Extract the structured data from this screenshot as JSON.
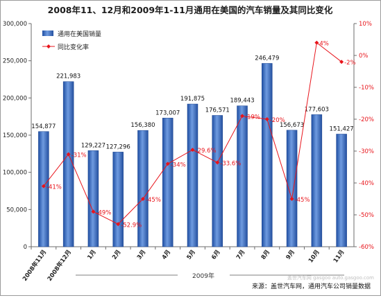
{
  "chart_data": {
    "type": "bar+line",
    "title": "2008年11、12月和2009年1-11月通用在美国的汽车销量及其同比变化",
    "categories": [
      "2008年11月",
      "2008年12月",
      "1月",
      "2月",
      "3月",
      "4月",
      "5月",
      "6月",
      "7月",
      "8月",
      "9月",
      "10月",
      "11月"
    ],
    "group_label": "2009年",
    "series": [
      {
        "name": "通用在美国销量",
        "type": "bar",
        "axis": "left",
        "color": "#3d6fc4",
        "values": [
          154877,
          221983,
          129227,
          127296,
          156380,
          173007,
          191875,
          176571,
          189443,
          246479,
          156673,
          177603,
          151427
        ],
        "labels": [
          "154,877",
          "221,983",
          "129,227",
          "127,296",
          "156,380",
          "173,007",
          "191,875",
          "176,571",
          "189,443",
          "246,479",
          "156,673",
          "177,603",
          "151,427"
        ]
      },
      {
        "name": "同比变化率",
        "type": "line",
        "axis": "right",
        "color": "#e8141b",
        "values": [
          -41,
          -31,
          -49,
          -52.9,
          -45,
          -34,
          -29.6,
          -33.6,
          -19,
          -20,
          -45,
          4,
          -2
        ],
        "labels": [
          "-41%",
          "-31%",
          "-49%",
          "-52.9%",
          "-45%",
          "-34%",
          "-29.6%",
          "-33.6%",
          "-19%",
          "-20%",
          "-45%",
          "4%",
          "-2%"
        ]
      }
    ],
    "y_left": {
      "min": 0,
      "max": 300000,
      "step": 50000,
      "ticks": [
        "0",
        "50,000",
        "100,000",
        "150,000",
        "200,000",
        "250,000",
        "300,000"
      ]
    },
    "y_right": {
      "min": -60,
      "max": 10,
      "step": 10,
      "ticks": [
        "-60%",
        "-50%",
        "-40%",
        "-30%",
        "-20%",
        "-10%",
        "0%",
        "10%"
      ]
    },
    "legend_position": "top-left",
    "grid": false,
    "source": "来源：盖世汽车网，通用汽车公司销量数据",
    "watermark": "盖世汽车网 gasgoo auto.gasgoo.com"
  }
}
